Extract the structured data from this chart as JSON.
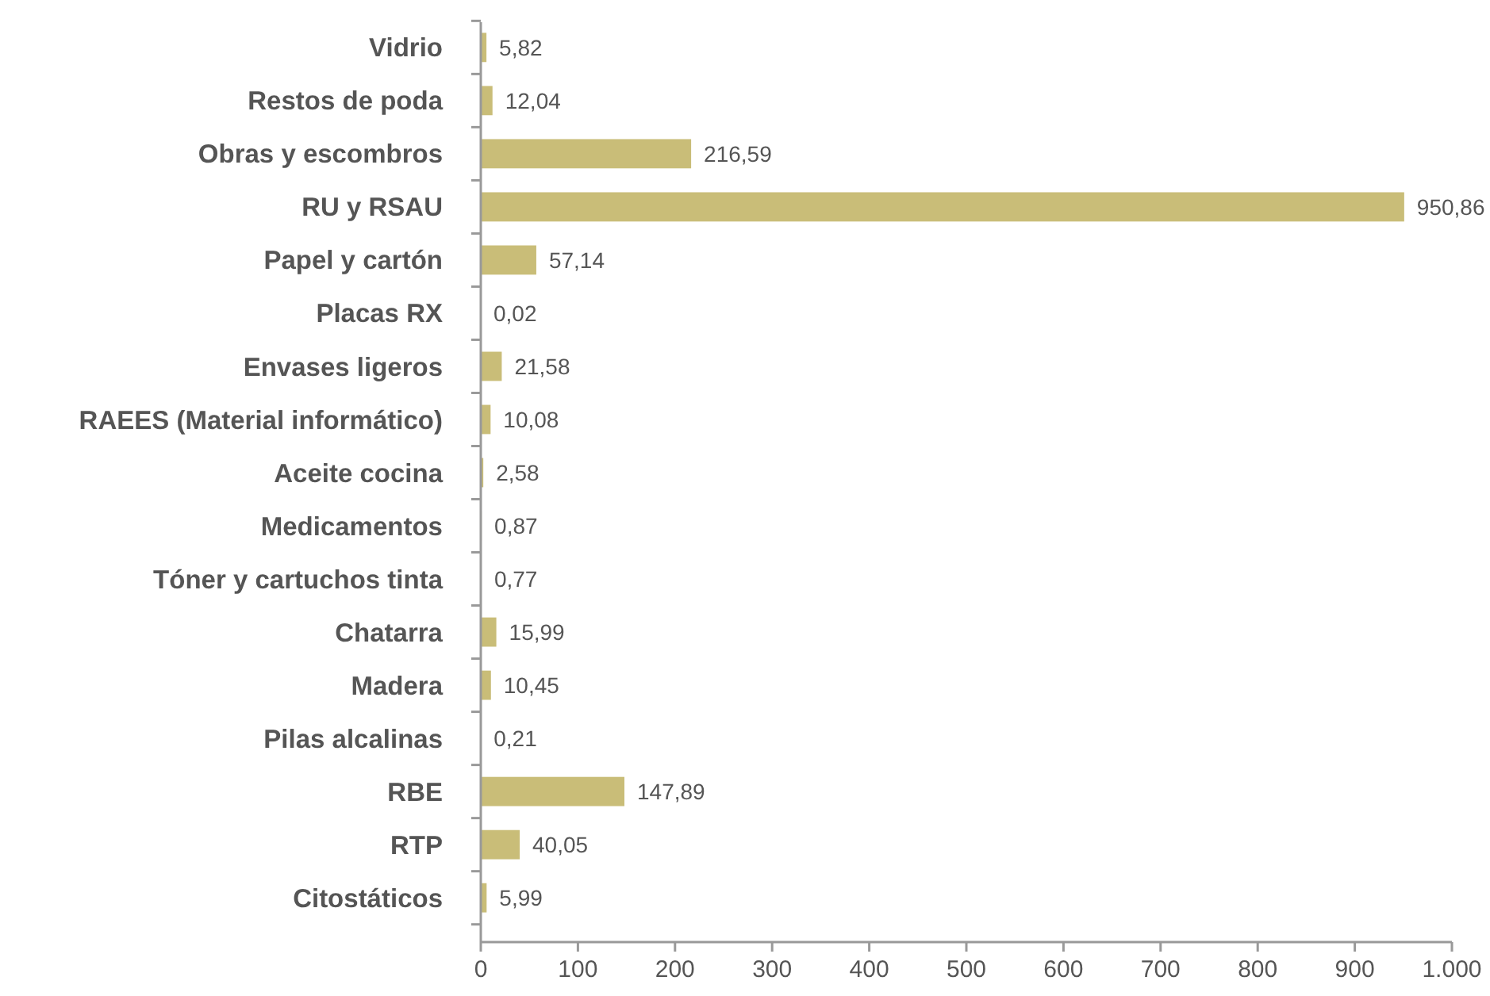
{
  "chart_data": {
    "type": "bar",
    "orientation": "horizontal",
    "categories": [
      "Vidrio",
      "Restos de poda",
      "Obras y escombros",
      "RU y RSAU",
      "Papel y cartón",
      "Placas RX",
      "Envases ligeros",
      "RAEES (Material informático)",
      "Aceite cocina",
      "Medicamentos",
      "Tóner y cartuchos tinta",
      "Chatarra",
      "Madera",
      "Pilas alcalinas",
      "RBE",
      "RTP",
      "Citostáticos"
    ],
    "values": [
      5.82,
      12.04,
      216.59,
      950.86,
      57.14,
      0.02,
      21.58,
      10.08,
      2.58,
      0.87,
      0.77,
      15.99,
      10.45,
      0.21,
      147.89,
      40.05,
      5.99
    ],
    "value_labels": [
      "5,82",
      "12,04",
      "216,59",
      "950,86",
      "57,14",
      "0,02",
      "21,58",
      "10,08",
      "2,58",
      "0,87",
      "0,77",
      "15,99",
      "10,45",
      "0,21",
      "147,89",
      "40,05",
      "5,99"
    ],
    "color": "#c9bd78",
    "xlim": [
      0,
      1000
    ],
    "xticks": [
      0,
      100,
      200,
      300,
      400,
      500,
      600,
      700,
      800,
      900,
      {
        "value": 1000,
        "label": "1.000"
      }
    ]
  }
}
